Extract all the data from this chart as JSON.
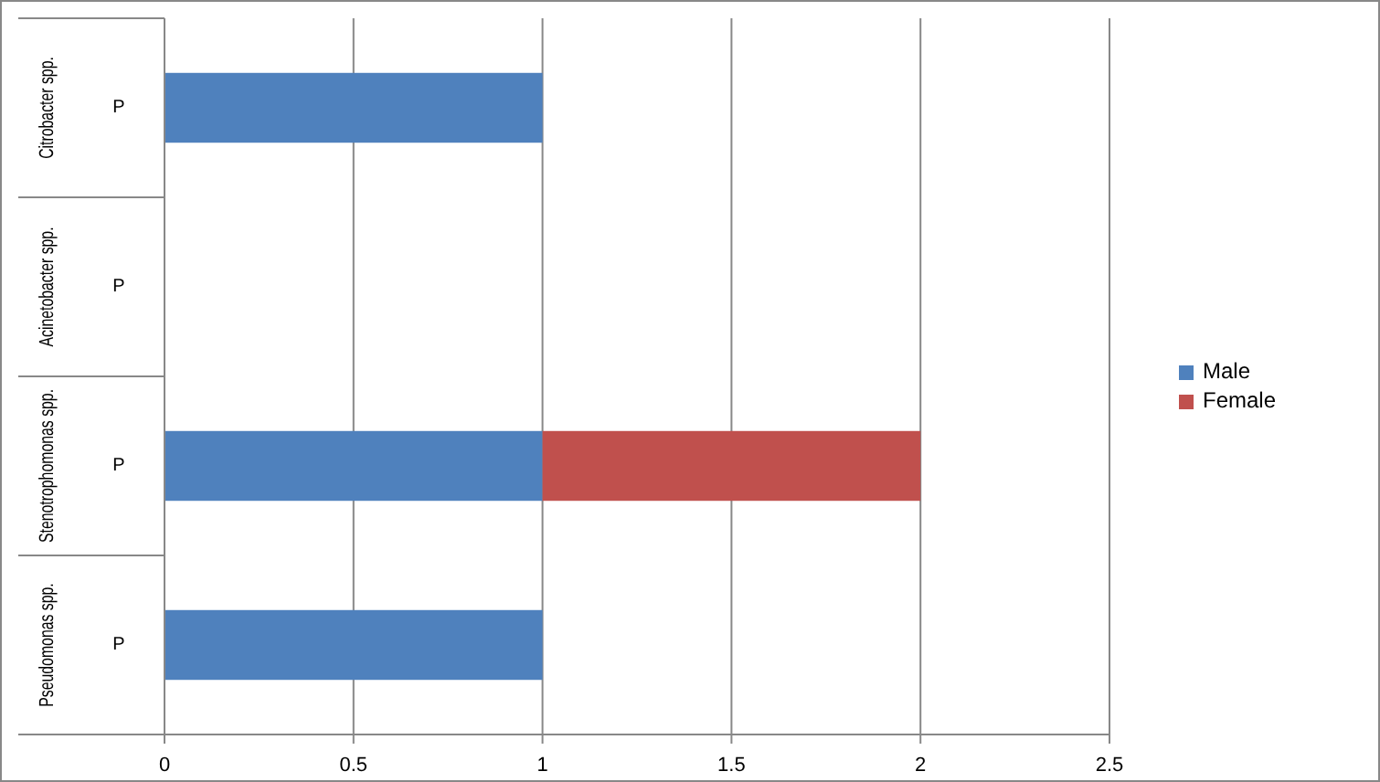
{
  "chart_data": {
    "type": "bar",
    "orientation": "horizontal",
    "stacked": true,
    "categories": [
      "Citrobacter spp.",
      "Acinetobacter spp.",
      "Stenotrophomonas spp.",
      "Pseudomonas spp."
    ],
    "series": [
      {
        "name": "Male",
        "color": "#4f81bd",
        "values": [
          1,
          null,
          1,
          1
        ]
      },
      {
        "name": "Female",
        "color": "#c0504d",
        "values": [
          null,
          null,
          1,
          null
        ]
      }
    ],
    "annotations": [
      "P",
      "P",
      "P",
      "P"
    ],
    "xlim": [
      0,
      2.5
    ],
    "xticks": [
      0,
      0.5,
      1,
      1.5,
      2,
      2.5
    ],
    "grid": "x",
    "legend": "right"
  }
}
